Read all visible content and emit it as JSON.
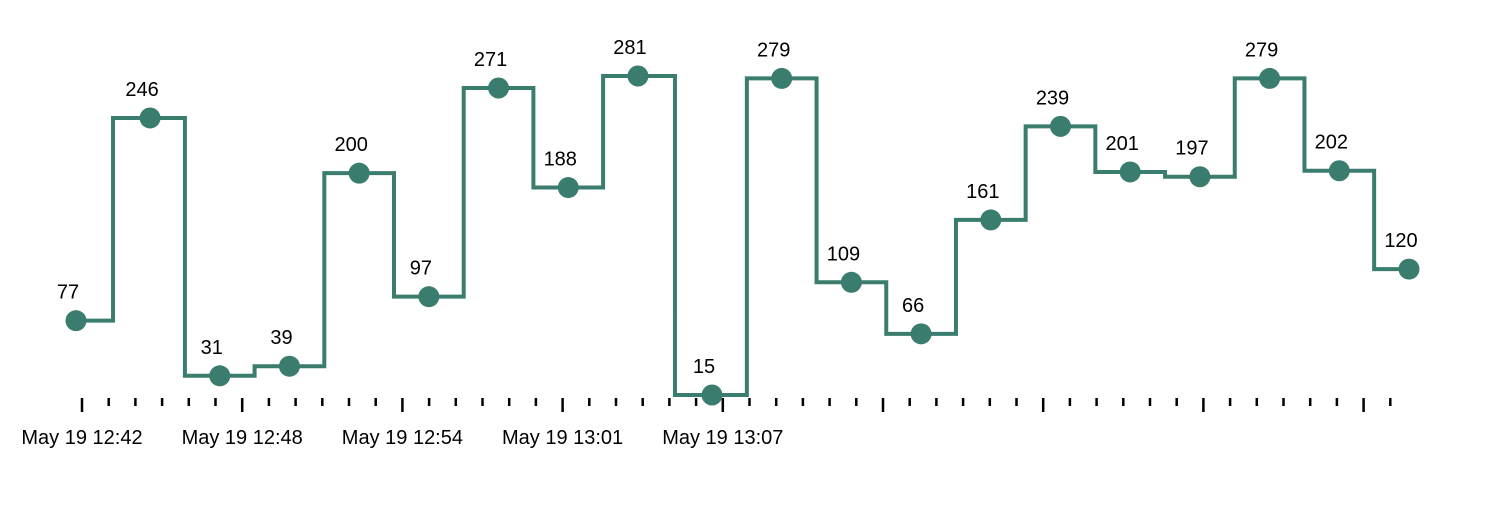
{
  "chart_data": {
    "type": "line",
    "step": "center",
    "title": "",
    "xlabel": "",
    "ylabel": "",
    "x_axis": {
      "type": "time",
      "tick_labels": [
        "May 19 12:42",
        "May 19 12:48",
        "May 19 12:54",
        "May 19 13:01",
        "May 19 13:07"
      ],
      "major_tick_times": [
        "12:42",
        "12:48",
        "12:54",
        "13:01",
        "13:07"
      ],
      "minor_ticks_per_major": 6
    },
    "y_axis": {
      "visible": false,
      "range": [
        15,
        281
      ]
    },
    "grid": false,
    "legend": "none",
    "series": [
      {
        "color": "#3a7d6e",
        "points": [
          {
            "x": "12:41.9",
            "y": 77
          },
          {
            "x": "12:43.6",
            "y": 246
          },
          {
            "x": "12:45.2",
            "y": 31
          },
          {
            "x": "12:46.8",
            "y": 39
          },
          {
            "x": "12:48.4",
            "y": 200
          },
          {
            "x": "12:50.0",
            "y": 97
          },
          {
            "x": "12:51.6",
            "y": 271
          },
          {
            "x": "12:53.2",
            "y": 188
          },
          {
            "x": "12:54.8",
            "y": 281
          },
          {
            "x": "12:56.5",
            "y": 15
          },
          {
            "x": "12:58.1",
            "y": 279
          },
          {
            "x": "12:59.7",
            "y": 109
          },
          {
            "x": "13:01.3",
            "y": 66
          },
          {
            "x": "13:02.9",
            "y": 161
          },
          {
            "x": "13:04.5",
            "y": 239
          },
          {
            "x": "13:06.1",
            "y": 201
          },
          {
            "x": "13:07.7",
            "y": 197
          },
          {
            "x": "13:09.3",
            "y": 279
          },
          {
            "x": "13:10.9",
            "y": 202
          },
          {
            "x": "13:12.5",
            "y": 120
          }
        ]
      }
    ]
  }
}
